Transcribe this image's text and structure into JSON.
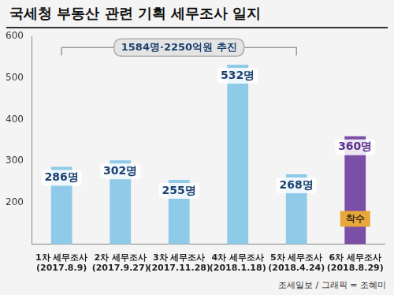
{
  "chart_data": {
    "type": "bar",
    "title": "국세청 부동산 관련 기획 세무조사 일지",
    "categories": [
      "1차 세무조사\n(2017.8.9)",
      "2차 세무조사\n(2017.9.27)",
      "3차 세무조사\n(2017.11.28)",
      "4차 세무조사\n(2018.1.18)",
      "5차 세무조사\n(2018.4.24)",
      "6차 세무조사\n(2018.8.29)"
    ],
    "values": [
      286,
      302,
      255,
      532,
      268,
      360
    ],
    "value_labels": [
      "286명",
      "302명",
      "255명",
      "532명",
      "268명",
      "360명"
    ],
    "colors": [
      "#8fcbe8",
      "#8fcbe8",
      "#8fcbe8",
      "#8fcbe8",
      "#8fcbe8",
      "#7b4fa6"
    ],
    "ylim": [
      100,
      600
    ],
    "yticks": [
      200,
      300,
      400,
      500,
      600
    ],
    "grid": false,
    "data_labels": true,
    "annotations": [
      {
        "text": "1584명·2250억원 추진"
      },
      {
        "text": "착수"
      }
    ],
    "source": "조세일보 / 그래픽 = 조혜미"
  }
}
